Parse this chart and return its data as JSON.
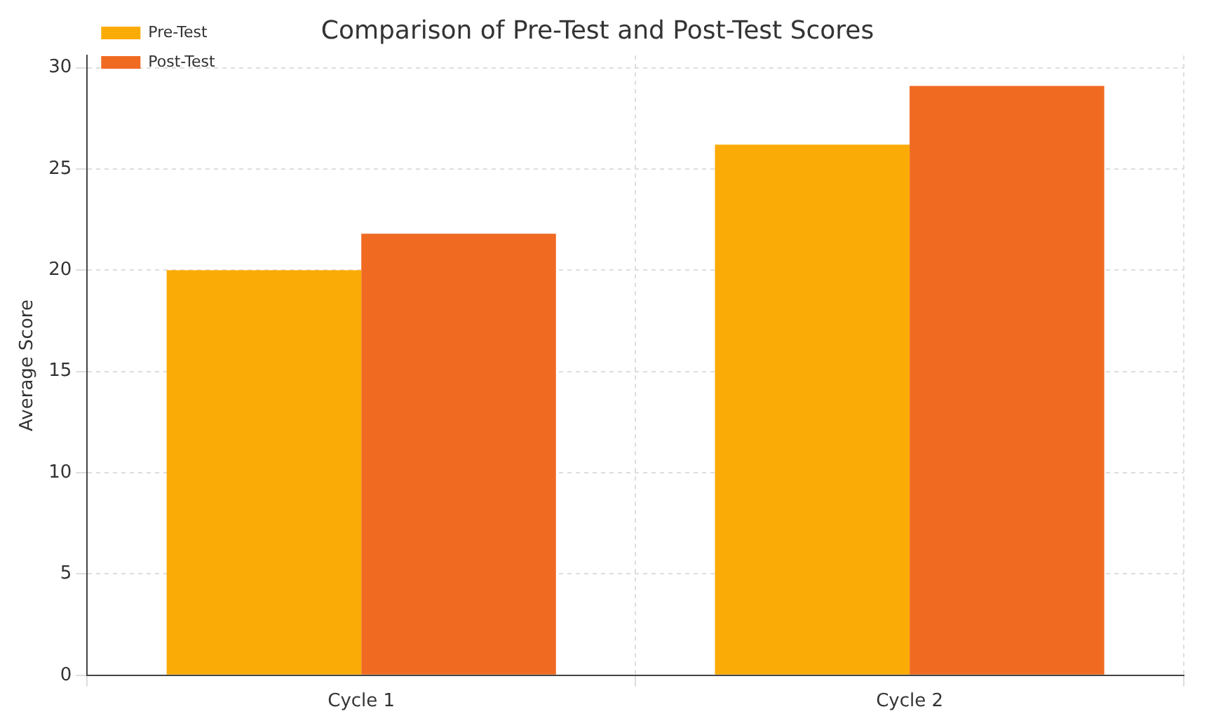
{
  "chart_data": {
    "type": "bar",
    "title": "Comparison of Pre-Test and Post-Test Scores",
    "ylabel": "Average Score",
    "categories": [
      "Cycle 1",
      "Cycle 2"
    ],
    "series": [
      {
        "name": "Pre-Test",
        "color": "#fbab05",
        "values": [
          20.0,
          26.2
        ]
      },
      {
        "name": "Post-Test",
        "color": "#f06a22",
        "values": [
          21.8,
          29.1
        ]
      }
    ],
    "ylim": [
      0,
      30.6
    ],
    "yticks": [
      0,
      5,
      10,
      15,
      20,
      25,
      30
    ],
    "grid": true,
    "legend": "top left"
  }
}
